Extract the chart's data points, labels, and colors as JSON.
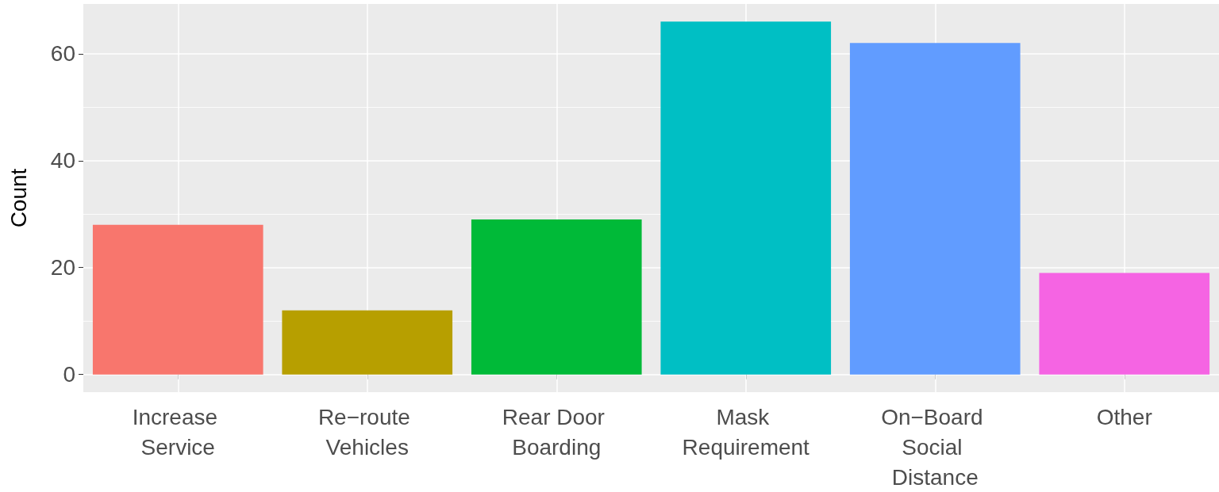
{
  "chart_data": {
    "type": "bar",
    "ylabel": "Count",
    "categories": [
      "Increase Service",
      "Re−route Vehicles",
      "Rear Door Boarding",
      "Mask Requirement",
      "On−Board Social Distance",
      "Other"
    ],
    "values": [
      28,
      12,
      29,
      66,
      62,
      19
    ],
    "colors": [
      "#f8766d",
      "#b79f00",
      "#00ba38",
      "#00bfc4",
      "#619cff",
      "#f564e3"
    ],
    "ylim": [
      -3.3,
      69.3
    ],
    "yticks": [
      0,
      20,
      40,
      60
    ],
    "grid": true
  }
}
